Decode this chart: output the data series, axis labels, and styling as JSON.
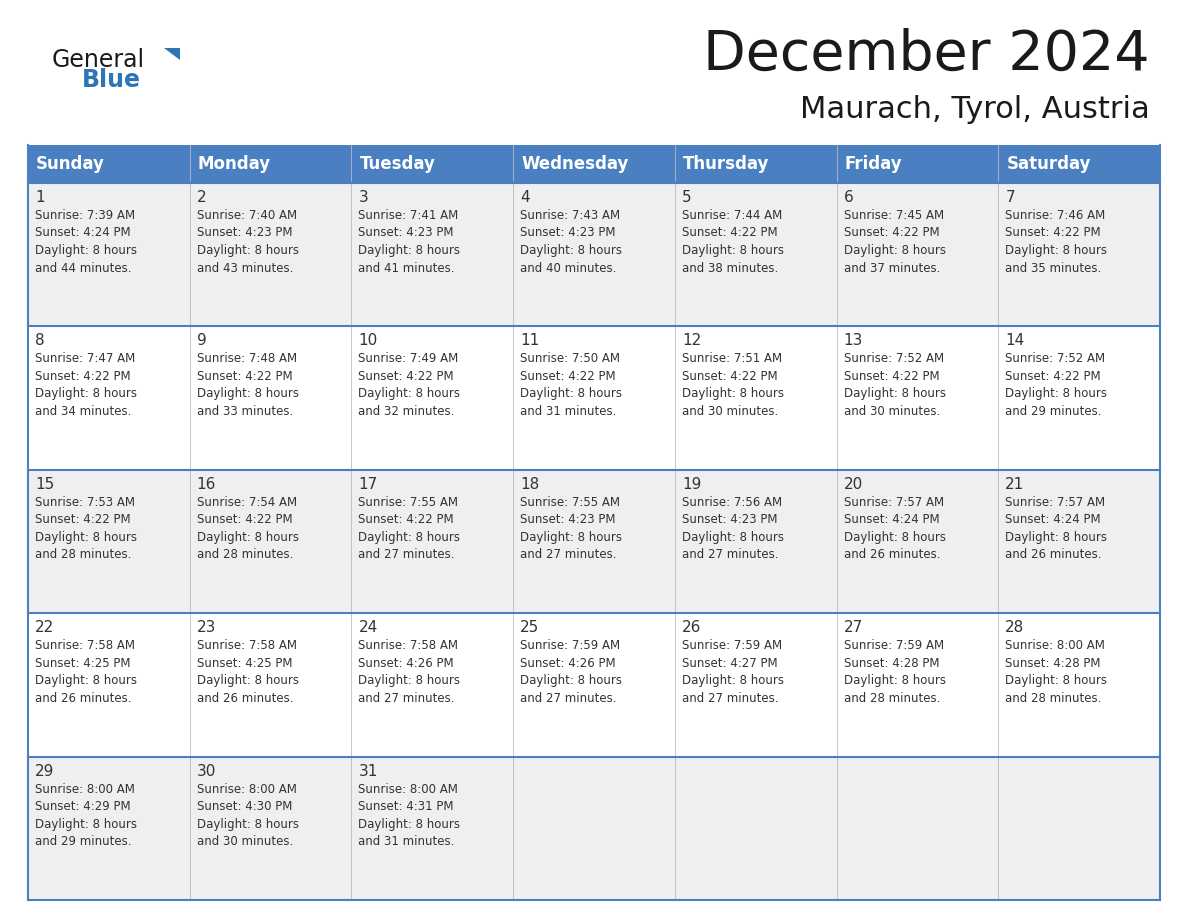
{
  "title": "December 2024",
  "subtitle": "Maurach, Tyrol, Austria",
  "header_bg": "#4A7FC1",
  "header_text_color": "#FFFFFF",
  "cell_bg_odd": "#EFEFEF",
  "cell_bg_even": "#FFFFFF",
  "cell_text_color": "#333333",
  "border_color": "#4A7FC1",
  "separator_color": "#4A7FC1",
  "day_headers": [
    "Sunday",
    "Monday",
    "Tuesday",
    "Wednesday",
    "Thursday",
    "Friday",
    "Saturday"
  ],
  "weeks": [
    [
      {
        "day": 1,
        "info": "Sunrise: 7:39 AM\nSunset: 4:24 PM\nDaylight: 8 hours\nand 44 minutes."
      },
      {
        "day": 2,
        "info": "Sunrise: 7:40 AM\nSunset: 4:23 PM\nDaylight: 8 hours\nand 43 minutes."
      },
      {
        "day": 3,
        "info": "Sunrise: 7:41 AM\nSunset: 4:23 PM\nDaylight: 8 hours\nand 41 minutes."
      },
      {
        "day": 4,
        "info": "Sunrise: 7:43 AM\nSunset: 4:23 PM\nDaylight: 8 hours\nand 40 minutes."
      },
      {
        "day": 5,
        "info": "Sunrise: 7:44 AM\nSunset: 4:22 PM\nDaylight: 8 hours\nand 38 minutes."
      },
      {
        "day": 6,
        "info": "Sunrise: 7:45 AM\nSunset: 4:22 PM\nDaylight: 8 hours\nand 37 minutes."
      },
      {
        "day": 7,
        "info": "Sunrise: 7:46 AM\nSunset: 4:22 PM\nDaylight: 8 hours\nand 35 minutes."
      }
    ],
    [
      {
        "day": 8,
        "info": "Sunrise: 7:47 AM\nSunset: 4:22 PM\nDaylight: 8 hours\nand 34 minutes."
      },
      {
        "day": 9,
        "info": "Sunrise: 7:48 AM\nSunset: 4:22 PM\nDaylight: 8 hours\nand 33 minutes."
      },
      {
        "day": 10,
        "info": "Sunrise: 7:49 AM\nSunset: 4:22 PM\nDaylight: 8 hours\nand 32 minutes."
      },
      {
        "day": 11,
        "info": "Sunrise: 7:50 AM\nSunset: 4:22 PM\nDaylight: 8 hours\nand 31 minutes."
      },
      {
        "day": 12,
        "info": "Sunrise: 7:51 AM\nSunset: 4:22 PM\nDaylight: 8 hours\nand 30 minutes."
      },
      {
        "day": 13,
        "info": "Sunrise: 7:52 AM\nSunset: 4:22 PM\nDaylight: 8 hours\nand 30 minutes."
      },
      {
        "day": 14,
        "info": "Sunrise: 7:52 AM\nSunset: 4:22 PM\nDaylight: 8 hours\nand 29 minutes."
      }
    ],
    [
      {
        "day": 15,
        "info": "Sunrise: 7:53 AM\nSunset: 4:22 PM\nDaylight: 8 hours\nand 28 minutes."
      },
      {
        "day": 16,
        "info": "Sunrise: 7:54 AM\nSunset: 4:22 PM\nDaylight: 8 hours\nand 28 minutes."
      },
      {
        "day": 17,
        "info": "Sunrise: 7:55 AM\nSunset: 4:22 PM\nDaylight: 8 hours\nand 27 minutes."
      },
      {
        "day": 18,
        "info": "Sunrise: 7:55 AM\nSunset: 4:23 PM\nDaylight: 8 hours\nand 27 minutes."
      },
      {
        "day": 19,
        "info": "Sunrise: 7:56 AM\nSunset: 4:23 PM\nDaylight: 8 hours\nand 27 minutes."
      },
      {
        "day": 20,
        "info": "Sunrise: 7:57 AM\nSunset: 4:24 PM\nDaylight: 8 hours\nand 26 minutes."
      },
      {
        "day": 21,
        "info": "Sunrise: 7:57 AM\nSunset: 4:24 PM\nDaylight: 8 hours\nand 26 minutes."
      }
    ],
    [
      {
        "day": 22,
        "info": "Sunrise: 7:58 AM\nSunset: 4:25 PM\nDaylight: 8 hours\nand 26 minutes."
      },
      {
        "day": 23,
        "info": "Sunrise: 7:58 AM\nSunset: 4:25 PM\nDaylight: 8 hours\nand 26 minutes."
      },
      {
        "day": 24,
        "info": "Sunrise: 7:58 AM\nSunset: 4:26 PM\nDaylight: 8 hours\nand 27 minutes."
      },
      {
        "day": 25,
        "info": "Sunrise: 7:59 AM\nSunset: 4:26 PM\nDaylight: 8 hours\nand 27 minutes."
      },
      {
        "day": 26,
        "info": "Sunrise: 7:59 AM\nSunset: 4:27 PM\nDaylight: 8 hours\nand 27 minutes."
      },
      {
        "day": 27,
        "info": "Sunrise: 7:59 AM\nSunset: 4:28 PM\nDaylight: 8 hours\nand 28 minutes."
      },
      {
        "day": 28,
        "info": "Sunrise: 8:00 AM\nSunset: 4:28 PM\nDaylight: 8 hours\nand 28 minutes."
      }
    ],
    [
      {
        "day": 29,
        "info": "Sunrise: 8:00 AM\nSunset: 4:29 PM\nDaylight: 8 hours\nand 29 minutes."
      },
      {
        "day": 30,
        "info": "Sunrise: 8:00 AM\nSunset: 4:30 PM\nDaylight: 8 hours\nand 30 minutes."
      },
      {
        "day": 31,
        "info": "Sunrise: 8:00 AM\nSunset: 4:31 PM\nDaylight: 8 hours\nand 31 minutes."
      },
      null,
      null,
      null,
      null
    ]
  ],
  "logo_general_color": "#1a1a1a",
  "logo_blue_color": "#2E75B6",
  "logo_triangle_color": "#2E75B6",
  "title_color": "#1a1a1a",
  "subtitle_color": "#1a1a1a"
}
